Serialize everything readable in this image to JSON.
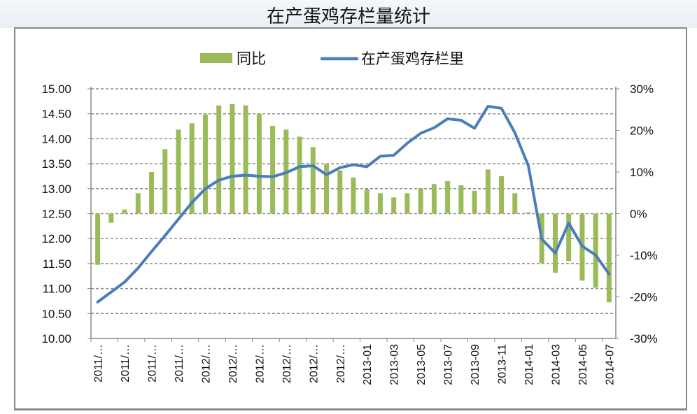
{
  "chart_data": {
    "type": "bar+line",
    "title": "在产蛋鸡存栏量统计",
    "legend_position": "top",
    "grid": true,
    "x": [
      "2011-05",
      "2011-06",
      "2011-07",
      "2011-08",
      "2011-09",
      "2011-10",
      "2011-11",
      "2011-12",
      "2012-01",
      "2012-02",
      "2012-03",
      "2012-04",
      "2012-05",
      "2012-06",
      "2012-07",
      "2012-08",
      "2012-09",
      "2012-10",
      "2012-11",
      "2012-12",
      "2013-01",
      "2013-02",
      "2013-03",
      "2013-04",
      "2013-05",
      "2013-06",
      "2013-07",
      "2013-08",
      "2013-09",
      "2013-10",
      "2013-11",
      "2013-12",
      "2014-01",
      "2014-02",
      "2014-03",
      "2014-04",
      "2014-05",
      "2014-06",
      "2014-07"
    ],
    "x_tick_labels": [
      "2011/…",
      "2011/…",
      "2011/…",
      "2011/…",
      "2012/…",
      "2012/…",
      "2012/…",
      "2012/…",
      "2012/…",
      "2012/…",
      "2013-01",
      "2013-03",
      "2013-05",
      "2013-07",
      "2013-09",
      "2013-11",
      "2014-01",
      "2014-03",
      "2014-05",
      "2014-07"
    ],
    "y_left": {
      "ylim": [
        10,
        15
      ],
      "ticks": [
        "10.00",
        "10.50",
        "11.00",
        "11.50",
        "12.00",
        "12.50",
        "13.00",
        "13.50",
        "14.00",
        "14.50",
        "15.00"
      ]
    },
    "y_right": {
      "ylim": [
        -30,
        30
      ],
      "ticks": [
        "-30%",
        "-20%",
        "-10%",
        "0%",
        "10%",
        "20%",
        "30%"
      ]
    },
    "series": [
      {
        "name": "同比",
        "type": "bar",
        "axis": "right",
        "color": "#9bbb59",
        "values": [
          -12.3,
          -2.2,
          1.0,
          4.9,
          10.0,
          15.5,
          20.2,
          21.7,
          23.8,
          26.0,
          26.3,
          26.0,
          24.0,
          21.1,
          20.2,
          18.5,
          16.0,
          11.9,
          10.4,
          8.7,
          5.9,
          4.9,
          3.9,
          4.9,
          6.1,
          7.1,
          7.8,
          6.8,
          5.5,
          10.6,
          9.0,
          4.9,
          0.3,
          -11.9,
          -14.2,
          -11.4,
          -16.1,
          -17.8,
          -21.3
        ]
      },
      {
        "name": "在产蛋鸡存栏里",
        "type": "line",
        "axis": "left",
        "color": "#4a7ebb",
        "values": [
          10.73,
          10.93,
          11.13,
          11.41,
          11.74,
          12.06,
          12.39,
          12.72,
          13.0,
          13.17,
          13.25,
          13.27,
          13.25,
          13.24,
          13.32,
          13.44,
          13.46,
          13.28,
          13.42,
          13.48,
          13.44,
          13.65,
          13.67,
          13.91,
          14.11,
          14.22,
          14.4,
          14.37,
          14.21,
          14.65,
          14.61,
          14.12,
          13.46,
          11.99,
          11.71,
          12.31,
          11.85,
          11.67,
          11.29
        ]
      }
    ]
  }
}
